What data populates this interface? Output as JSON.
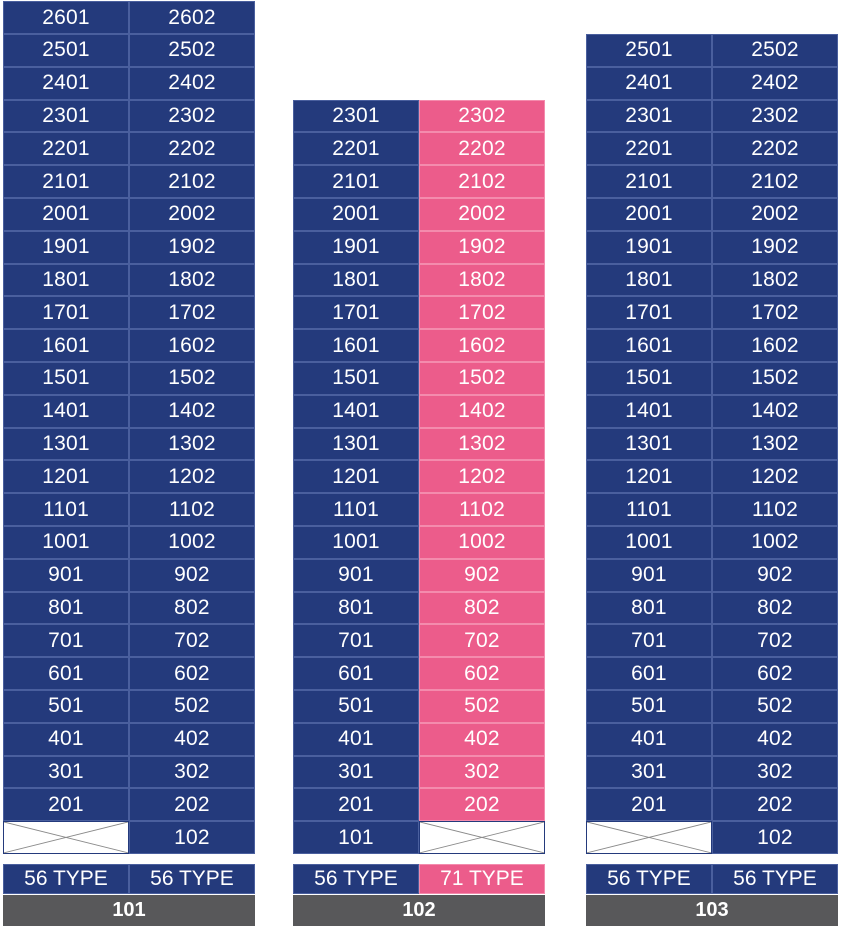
{
  "colors": {
    "blue": "#243a7c",
    "pink": "#ec5c8b",
    "label_gray": "#58585a",
    "empty": "#ffffff"
  },
  "buildings": [
    {
      "name": "101",
      "type_labels": [
        "56 TYPE",
        "56 TYPE"
      ],
      "type_colors": [
        "blue",
        "blue"
      ],
      "rows": [
        [
          {
            "text": "2601",
            "color": "blue"
          },
          {
            "text": "2602",
            "color": "blue"
          }
        ],
        [
          {
            "text": "2501",
            "color": "blue"
          },
          {
            "text": "2502",
            "color": "blue"
          }
        ],
        [
          {
            "text": "2401",
            "color": "blue"
          },
          {
            "text": "2402",
            "color": "blue"
          }
        ],
        [
          {
            "text": "2301",
            "color": "blue"
          },
          {
            "text": "2302",
            "color": "blue"
          }
        ],
        [
          {
            "text": "2201",
            "color": "blue"
          },
          {
            "text": "2202",
            "color": "blue"
          }
        ],
        [
          {
            "text": "2101",
            "color": "blue"
          },
          {
            "text": "2102",
            "color": "blue"
          }
        ],
        [
          {
            "text": "2001",
            "color": "blue"
          },
          {
            "text": "2002",
            "color": "blue"
          }
        ],
        [
          {
            "text": "1901",
            "color": "blue"
          },
          {
            "text": "1902",
            "color": "blue"
          }
        ],
        [
          {
            "text": "1801",
            "color": "blue"
          },
          {
            "text": "1802",
            "color": "blue"
          }
        ],
        [
          {
            "text": "1701",
            "color": "blue"
          },
          {
            "text": "1702",
            "color": "blue"
          }
        ],
        [
          {
            "text": "1601",
            "color": "blue"
          },
          {
            "text": "1602",
            "color": "blue"
          }
        ],
        [
          {
            "text": "1501",
            "color": "blue"
          },
          {
            "text": "1502",
            "color": "blue"
          }
        ],
        [
          {
            "text": "1401",
            "color": "blue"
          },
          {
            "text": "1402",
            "color": "blue"
          }
        ],
        [
          {
            "text": "1301",
            "color": "blue"
          },
          {
            "text": "1302",
            "color": "blue"
          }
        ],
        [
          {
            "text": "1201",
            "color": "blue"
          },
          {
            "text": "1202",
            "color": "blue"
          }
        ],
        [
          {
            "text": "1101",
            "color": "blue"
          },
          {
            "text": "1102",
            "color": "blue"
          }
        ],
        [
          {
            "text": "1001",
            "color": "blue"
          },
          {
            "text": "1002",
            "color": "blue"
          }
        ],
        [
          {
            "text": "901",
            "color": "blue"
          },
          {
            "text": "902",
            "color": "blue"
          }
        ],
        [
          {
            "text": "801",
            "color": "blue"
          },
          {
            "text": "802",
            "color": "blue"
          }
        ],
        [
          {
            "text": "701",
            "color": "blue"
          },
          {
            "text": "702",
            "color": "blue"
          }
        ],
        [
          {
            "text": "601",
            "color": "blue"
          },
          {
            "text": "602",
            "color": "blue"
          }
        ],
        [
          {
            "text": "501",
            "color": "blue"
          },
          {
            "text": "502",
            "color": "blue"
          }
        ],
        [
          {
            "text": "401",
            "color": "blue"
          },
          {
            "text": "402",
            "color": "blue"
          }
        ],
        [
          {
            "text": "301",
            "color": "blue"
          },
          {
            "text": "302",
            "color": "blue"
          }
        ],
        [
          {
            "text": "201",
            "color": "blue"
          },
          {
            "text": "202",
            "color": "blue"
          }
        ],
        [
          {
            "text": "",
            "color": "empty"
          },
          {
            "text": "102",
            "color": "blue"
          }
        ]
      ]
    },
    {
      "name": "102",
      "type_labels": [
        "56 TYPE",
        "71 TYPE"
      ],
      "type_colors": [
        "blue",
        "pink"
      ],
      "rows": [
        [
          {
            "text": "2301",
            "color": "blue"
          },
          {
            "text": "2302",
            "color": "pink"
          }
        ],
        [
          {
            "text": "2201",
            "color": "blue"
          },
          {
            "text": "2202",
            "color": "pink"
          }
        ],
        [
          {
            "text": "2101",
            "color": "blue"
          },
          {
            "text": "2102",
            "color": "pink"
          }
        ],
        [
          {
            "text": "2001",
            "color": "blue"
          },
          {
            "text": "2002",
            "color": "pink"
          }
        ],
        [
          {
            "text": "1901",
            "color": "blue"
          },
          {
            "text": "1902",
            "color": "pink"
          }
        ],
        [
          {
            "text": "1801",
            "color": "blue"
          },
          {
            "text": "1802",
            "color": "pink"
          }
        ],
        [
          {
            "text": "1701",
            "color": "blue"
          },
          {
            "text": "1702",
            "color": "pink"
          }
        ],
        [
          {
            "text": "1601",
            "color": "blue"
          },
          {
            "text": "1602",
            "color": "pink"
          }
        ],
        [
          {
            "text": "1501",
            "color": "blue"
          },
          {
            "text": "1502",
            "color": "pink"
          }
        ],
        [
          {
            "text": "1401",
            "color": "blue"
          },
          {
            "text": "1402",
            "color": "pink"
          }
        ],
        [
          {
            "text": "1301",
            "color": "blue"
          },
          {
            "text": "1302",
            "color": "pink"
          }
        ],
        [
          {
            "text": "1201",
            "color": "blue"
          },
          {
            "text": "1202",
            "color": "pink"
          }
        ],
        [
          {
            "text": "1101",
            "color": "blue"
          },
          {
            "text": "1102",
            "color": "pink"
          }
        ],
        [
          {
            "text": "1001",
            "color": "blue"
          },
          {
            "text": "1002",
            "color": "pink"
          }
        ],
        [
          {
            "text": "901",
            "color": "blue"
          },
          {
            "text": "902",
            "color": "pink"
          }
        ],
        [
          {
            "text": "801",
            "color": "blue"
          },
          {
            "text": "802",
            "color": "pink"
          }
        ],
        [
          {
            "text": "701",
            "color": "blue"
          },
          {
            "text": "702",
            "color": "pink"
          }
        ],
        [
          {
            "text": "601",
            "color": "blue"
          },
          {
            "text": "602",
            "color": "pink"
          }
        ],
        [
          {
            "text": "501",
            "color": "blue"
          },
          {
            "text": "502",
            "color": "pink"
          }
        ],
        [
          {
            "text": "401",
            "color": "blue"
          },
          {
            "text": "402",
            "color": "pink"
          }
        ],
        [
          {
            "text": "301",
            "color": "blue"
          },
          {
            "text": "302",
            "color": "pink"
          }
        ],
        [
          {
            "text": "201",
            "color": "blue"
          },
          {
            "text": "202",
            "color": "pink"
          }
        ],
        [
          {
            "text": "101",
            "color": "blue"
          },
          {
            "text": "",
            "color": "empty"
          }
        ]
      ]
    },
    {
      "name": "103",
      "type_labels": [
        "56 TYPE",
        "56 TYPE"
      ],
      "type_colors": [
        "blue",
        "blue"
      ],
      "rows": [
        [
          {
            "text": "2501",
            "color": "blue"
          },
          {
            "text": "2502",
            "color": "blue"
          }
        ],
        [
          {
            "text": "2401",
            "color": "blue"
          },
          {
            "text": "2402",
            "color": "blue"
          }
        ],
        [
          {
            "text": "2301",
            "color": "blue"
          },
          {
            "text": "2302",
            "color": "blue"
          }
        ],
        [
          {
            "text": "2201",
            "color": "blue"
          },
          {
            "text": "2202",
            "color": "blue"
          }
        ],
        [
          {
            "text": "2101",
            "color": "blue"
          },
          {
            "text": "2102",
            "color": "blue"
          }
        ],
        [
          {
            "text": "2001",
            "color": "blue"
          },
          {
            "text": "2002",
            "color": "blue"
          }
        ],
        [
          {
            "text": "1901",
            "color": "blue"
          },
          {
            "text": "1902",
            "color": "blue"
          }
        ],
        [
          {
            "text": "1801",
            "color": "blue"
          },
          {
            "text": "1802",
            "color": "blue"
          }
        ],
        [
          {
            "text": "1701",
            "color": "blue"
          },
          {
            "text": "1702",
            "color": "blue"
          }
        ],
        [
          {
            "text": "1601",
            "color": "blue"
          },
          {
            "text": "1602",
            "color": "blue"
          }
        ],
        [
          {
            "text": "1501",
            "color": "blue"
          },
          {
            "text": "1502",
            "color": "blue"
          }
        ],
        [
          {
            "text": "1401",
            "color": "blue"
          },
          {
            "text": "1402",
            "color": "blue"
          }
        ],
        [
          {
            "text": "1301",
            "color": "blue"
          },
          {
            "text": "1302",
            "color": "blue"
          }
        ],
        [
          {
            "text": "1201",
            "color": "blue"
          },
          {
            "text": "1202",
            "color": "blue"
          }
        ],
        [
          {
            "text": "1101",
            "color": "blue"
          },
          {
            "text": "1102",
            "color": "blue"
          }
        ],
        [
          {
            "text": "1001",
            "color": "blue"
          },
          {
            "text": "1002",
            "color": "blue"
          }
        ],
        [
          {
            "text": "901",
            "color": "blue"
          },
          {
            "text": "902",
            "color": "blue"
          }
        ],
        [
          {
            "text": "801",
            "color": "blue"
          },
          {
            "text": "802",
            "color": "blue"
          }
        ],
        [
          {
            "text": "701",
            "color": "blue"
          },
          {
            "text": "702",
            "color": "blue"
          }
        ],
        [
          {
            "text": "601",
            "color": "blue"
          },
          {
            "text": "602",
            "color": "blue"
          }
        ],
        [
          {
            "text": "501",
            "color": "blue"
          },
          {
            "text": "502",
            "color": "blue"
          }
        ],
        [
          {
            "text": "401",
            "color": "blue"
          },
          {
            "text": "402",
            "color": "blue"
          }
        ],
        [
          {
            "text": "301",
            "color": "blue"
          },
          {
            "text": "302",
            "color": "blue"
          }
        ],
        [
          {
            "text": "201",
            "color": "blue"
          },
          {
            "text": "202",
            "color": "blue"
          }
        ],
        [
          {
            "text": "",
            "color": "empty"
          },
          {
            "text": "102",
            "color": "blue"
          }
        ]
      ]
    }
  ]
}
